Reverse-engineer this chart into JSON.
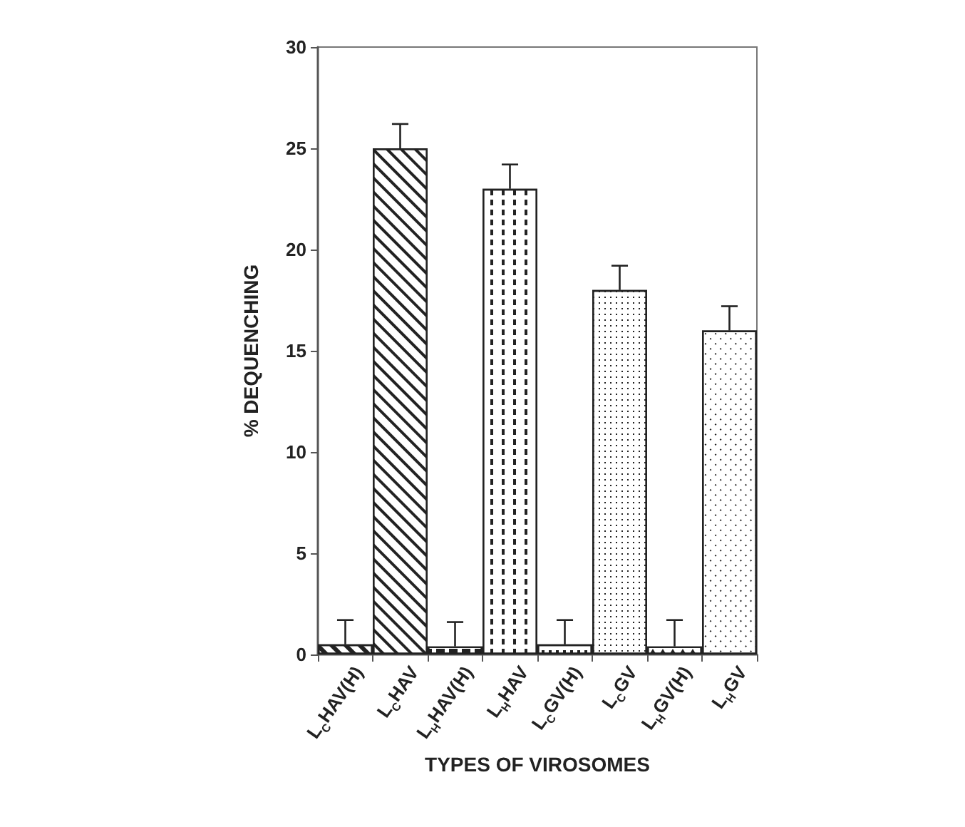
{
  "chart_data": {
    "type": "bar",
    "xlabel": "TYPES OF VIROSOMES",
    "ylabel": "% DEQUENCHING",
    "categories": [
      "L$_{C}$HAV(H)",
      "L$_{C}$HAV",
      "L$_{H}$HAV(H)",
      "L$_{H}$HAV",
      "L$_{C}$GV(H)",
      "L$_{C}$GV",
      "L$_{H}$GV(H)",
      "L$_{H}$GV"
    ],
    "values": [
      0.5,
      25,
      0.4,
      23,
      0.5,
      18,
      0.4,
      16
    ],
    "errors": [
      [
        0.5,
        1.7
      ],
      [
        25,
        26.2
      ],
      [
        0.4,
        1.6
      ],
      [
        23,
        24.2
      ],
      [
        0.5,
        1.7
      ],
      [
        18,
        19.2
      ],
      [
        0.4,
        1.7
      ],
      [
        16,
        17.2
      ]
    ],
    "color": "#222222",
    "ylim": [
      0,
      30
    ],
    "yticks": [
      0,
      5,
      10,
      15,
      20,
      25,
      30
    ],
    "grid": false
  }
}
